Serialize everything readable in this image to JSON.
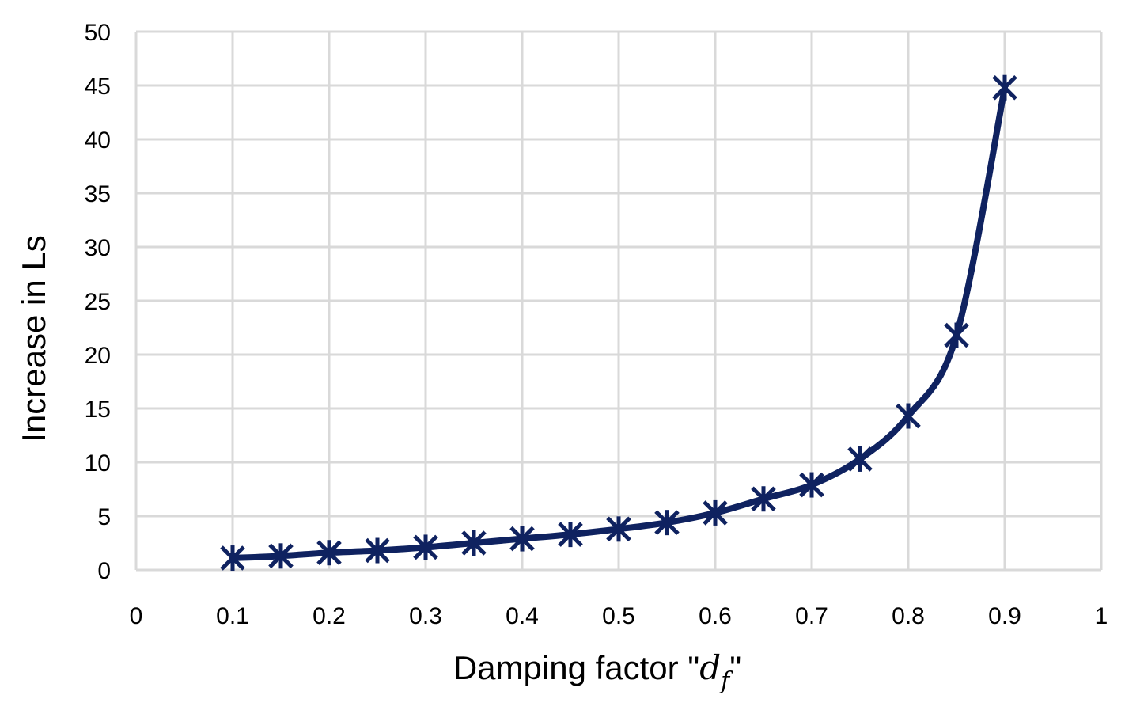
{
  "chart_data": {
    "type": "line",
    "xlabel": {
      "prefix": "Damping factor \"",
      "var": "d",
      "sub": "f",
      "suffix": "\""
    },
    "ylabel": "Increase in Ls",
    "xlim": [
      0,
      1
    ],
    "ylim": [
      0,
      50
    ],
    "xticks": [
      "0",
      "0.1",
      "0.2",
      "0.3",
      "0.4",
      "0.5",
      "0.6",
      "0.7",
      "0.8",
      "0.9",
      "1"
    ],
    "yticks": [
      "0",
      "5",
      "10",
      "15",
      "20",
      "25",
      "30",
      "35",
      "40",
      "45",
      "50"
    ],
    "grid": true,
    "legend": "none",
    "line_color": "#0f2260",
    "marker": "asterisk-x",
    "series": [
      {
        "x": [
          0.1,
          0.15,
          0.2,
          0.25,
          0.3,
          0.35,
          0.4,
          0.45,
          0.5,
          0.55,
          0.6,
          0.65,
          0.7,
          0.75,
          0.8,
          0.85,
          0.9
        ],
        "y": [
          1.1,
          1.3,
          1.6,
          1.8,
          2.1,
          2.5,
          2.9,
          3.3,
          3.8,
          4.4,
          5.3,
          6.6,
          7.9,
          10.3,
          14.3,
          21.8,
          44.8
        ]
      }
    ]
  }
}
